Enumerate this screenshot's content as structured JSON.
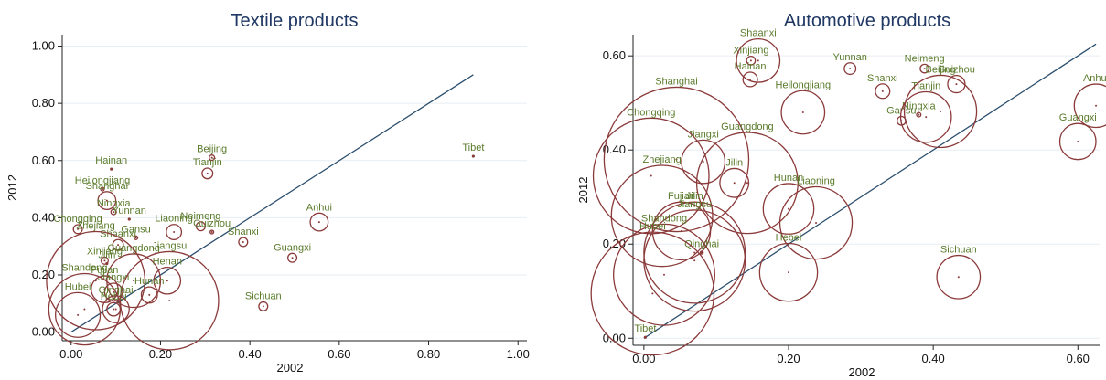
{
  "chart_data": [
    {
      "type": "scatter",
      "title": "Textile products",
      "xlabel": "2002",
      "ylabel": "2012",
      "xlim": [
        -0.02,
        1.02
      ],
      "ylim": [
        -0.03,
        1.04
      ],
      "xticks": [
        "0.00",
        "0.20",
        "0.40",
        "0.60",
        "0.80",
        "1.00"
      ],
      "yticks": [
        "0.00",
        "0.20",
        "0.40",
        "0.60",
        "0.80",
        "1.00"
      ],
      "grid": true,
      "diagonal": [
        0,
        0.9
      ],
      "points": [
        {
          "label": "Tibet",
          "x": 0.9,
          "y": 0.615,
          "size": 0
        },
        {
          "label": "Beijing",
          "x": 0.315,
          "y": 0.61,
          "size": 0.006
        },
        {
          "label": "Tianjin",
          "x": 0.305,
          "y": 0.555,
          "size": 0.012
        },
        {
          "label": "Hainan",
          "x": 0.09,
          "y": 0.57,
          "size": 0.003
        },
        {
          "label": "Heilongjiang",
          "x": 0.07,
          "y": 0.5,
          "size": 0.004
        },
        {
          "label": "Shanghai",
          "x": 0.08,
          "y": 0.46,
          "size": 0.02
        },
        {
          "label": "Ningxia",
          "x": 0.095,
          "y": 0.42,
          "size": 0.006
        },
        {
          "label": "Yunnan",
          "x": 0.13,
          "y": 0.395,
          "size": 0.003
        },
        {
          "label": "Anhui",
          "x": 0.555,
          "y": 0.385,
          "size": 0.02
        },
        {
          "label": "Chongqing",
          "x": 0.015,
          "y": 0.36,
          "size": 0.01
        },
        {
          "label": "Neimeng",
          "x": 0.29,
          "y": 0.37,
          "size": 0.01
        },
        {
          "label": "Liaoning",
          "x": 0.23,
          "y": 0.35,
          "size": 0.017
        },
        {
          "label": "Guizhou",
          "x": 0.315,
          "y": 0.35,
          "size": 0.004
        },
        {
          "label": "Gansu",
          "x": 0.145,
          "y": 0.33,
          "size": 0.004
        },
        {
          "label": "Shanxi",
          "x": 0.385,
          "y": 0.315,
          "size": 0.01
        },
        {
          "label": "Shaanxi",
          "x": 0.105,
          "y": 0.305,
          "size": 0.012
        },
        {
          "label": "Guangxi",
          "x": 0.495,
          "y": 0.26,
          "size": 0.01
        },
        {
          "label": "Xinjiang",
          "x": 0.075,
          "y": 0.25,
          "size": 0.008
        },
        {
          "label": "Jilin",
          "x": 0.08,
          "y": 0.24,
          "size": 0.003
        },
        {
          "label": "Guangdong",
          "x": 0.14,
          "y": 0.18,
          "size": 0.06
        },
        {
          "label": "Henan",
          "x": 0.215,
          "y": 0.18,
          "size": 0.03
        },
        {
          "label": "Zhejiang",
          "x": 0.055,
          "y": 0.18,
          "size": 0.11
        },
        {
          "label": "Fujian",
          "x": 0.075,
          "y": 0.15,
          "size": 0.03
        },
        {
          "label": "Jiangxi",
          "x": 0.095,
          "y": 0.14,
          "size": 0.02
        },
        {
          "label": "Hunan",
          "x": 0.175,
          "y": 0.13,
          "size": 0.018
        },
        {
          "label": "Jiangsu",
          "x": 0.22,
          "y": 0.11,
          "size": 0.11
        },
        {
          "label": "Hebei",
          "x": 0.095,
          "y": 0.08,
          "size": 0.015
        },
        {
          "label": "Qinghai",
          "x": 0.1,
          "y": 0.08,
          "size": 0.03
        },
        {
          "label": "Sichuan",
          "x": 0.43,
          "y": 0.09,
          "size": 0.01
        },
        {
          "label": "Shandong",
          "x": 0.03,
          "y": 0.08,
          "size": 0.08
        },
        {
          "label": "Hubei",
          "x": 0.015,
          "y": 0.06,
          "size": 0.05
        }
      ]
    },
    {
      "type": "scatter",
      "title": "Automotive products",
      "xlabel": "2002",
      "ylabel": "2012",
      "xlim": [
        -0.015,
        0.63
      ],
      "ylim": [
        -0.015,
        0.645
      ],
      "xticks": [
        "0.00",
        "0.20",
        "0.40",
        "0.60"
      ],
      "yticks": [
        "0.00",
        "0.20",
        "0.40",
        "0.60"
      ],
      "grid": true,
      "diagonal": [
        0,
        0.625
      ],
      "points": [
        {
          "label": "Xinjiang",
          "x": 0.148,
          "y": 0.59,
          "size": 0.006
        },
        {
          "label": "Shaanxi",
          "x": 0.158,
          "y": 0.59,
          "size": 0.03
        },
        {
          "label": "Hainan",
          "x": 0.147,
          "y": 0.55,
          "size": 0.01
        },
        {
          "label": "Yunnan",
          "x": 0.285,
          "y": 0.573,
          "size": 0.008
        },
        {
          "label": "Neimeng",
          "x": 0.388,
          "y": 0.573,
          "size": 0.006
        },
        {
          "label": "Guizhou",
          "x": 0.432,
          "y": 0.54,
          "size": 0.012
        },
        {
          "label": "Shanxi",
          "x": 0.33,
          "y": 0.525,
          "size": 0.01
        },
        {
          "label": "Heilongjiang",
          "x": 0.22,
          "y": 0.48,
          "size": 0.03
        },
        {
          "label": "Gansu",
          "x": 0.356,
          "y": 0.462,
          "size": 0.006
        },
        {
          "label": "Ningxia",
          "x": 0.38,
          "y": 0.475,
          "size": 0.003
        },
        {
          "label": "Tianjin",
          "x": 0.39,
          "y": 0.47,
          "size": 0.035
        },
        {
          "label": "Beijing",
          "x": 0.41,
          "y": 0.482,
          "size": 0.05
        },
        {
          "label": "Anhui",
          "x": 0.625,
          "y": 0.494,
          "size": 0.03
        },
        {
          "label": "Guangxi",
          "x": 0.6,
          "y": 0.418,
          "size": 0.025
        },
        {
          "label": "Shanghai",
          "x": 0.045,
          "y": 0.38,
          "size": 0.1
        },
        {
          "label": "Jiangxi",
          "x": 0.082,
          "y": 0.375,
          "size": 0.03
        },
        {
          "label": "Chongqing",
          "x": 0.01,
          "y": 0.345,
          "size": 0.08
        },
        {
          "label": "Jilin",
          "x": 0.125,
          "y": 0.33,
          "size": 0.02
        },
        {
          "label": "Guangdong",
          "x": 0.143,
          "y": 0.33,
          "size": 0.07
        },
        {
          "label": "Hunan",
          "x": 0.2,
          "y": 0.275,
          "size": 0.035
        },
        {
          "label": "Zhejiang",
          "x": 0.025,
          "y": 0.26,
          "size": 0.07
        },
        {
          "label": "Liaoning",
          "x": 0.238,
          "y": 0.245,
          "size": 0.05
        },
        {
          "label": "Fujian",
          "x": 0.052,
          "y": 0.228,
          "size": 0.04
        },
        {
          "label": "Jilin",
          "x": 0.07,
          "y": 0.182,
          "size": 0.07
        },
        {
          "label": "Qinghai",
          "x": 0.08,
          "y": 0.182,
          "size": 0.002
        },
        {
          "label": "Jiangsu",
          "x": 0.07,
          "y": 0.165,
          "size": 0.07
        },
        {
          "label": "Shandong",
          "x": 0.028,
          "y": 0.135,
          "size": 0.07
        },
        {
          "label": "Hebei",
          "x": 0.2,
          "y": 0.14,
          "size": 0.04
        },
        {
          "label": "Sichuan",
          "x": 0.435,
          "y": 0.13,
          "size": 0.03
        },
        {
          "label": "Hubei",
          "x": 0.012,
          "y": 0.095,
          "size": 0.085
        },
        {
          "label": "Tibet",
          "x": 0.002,
          "y": 0.002,
          "size": 0
        }
      ]
    }
  ]
}
